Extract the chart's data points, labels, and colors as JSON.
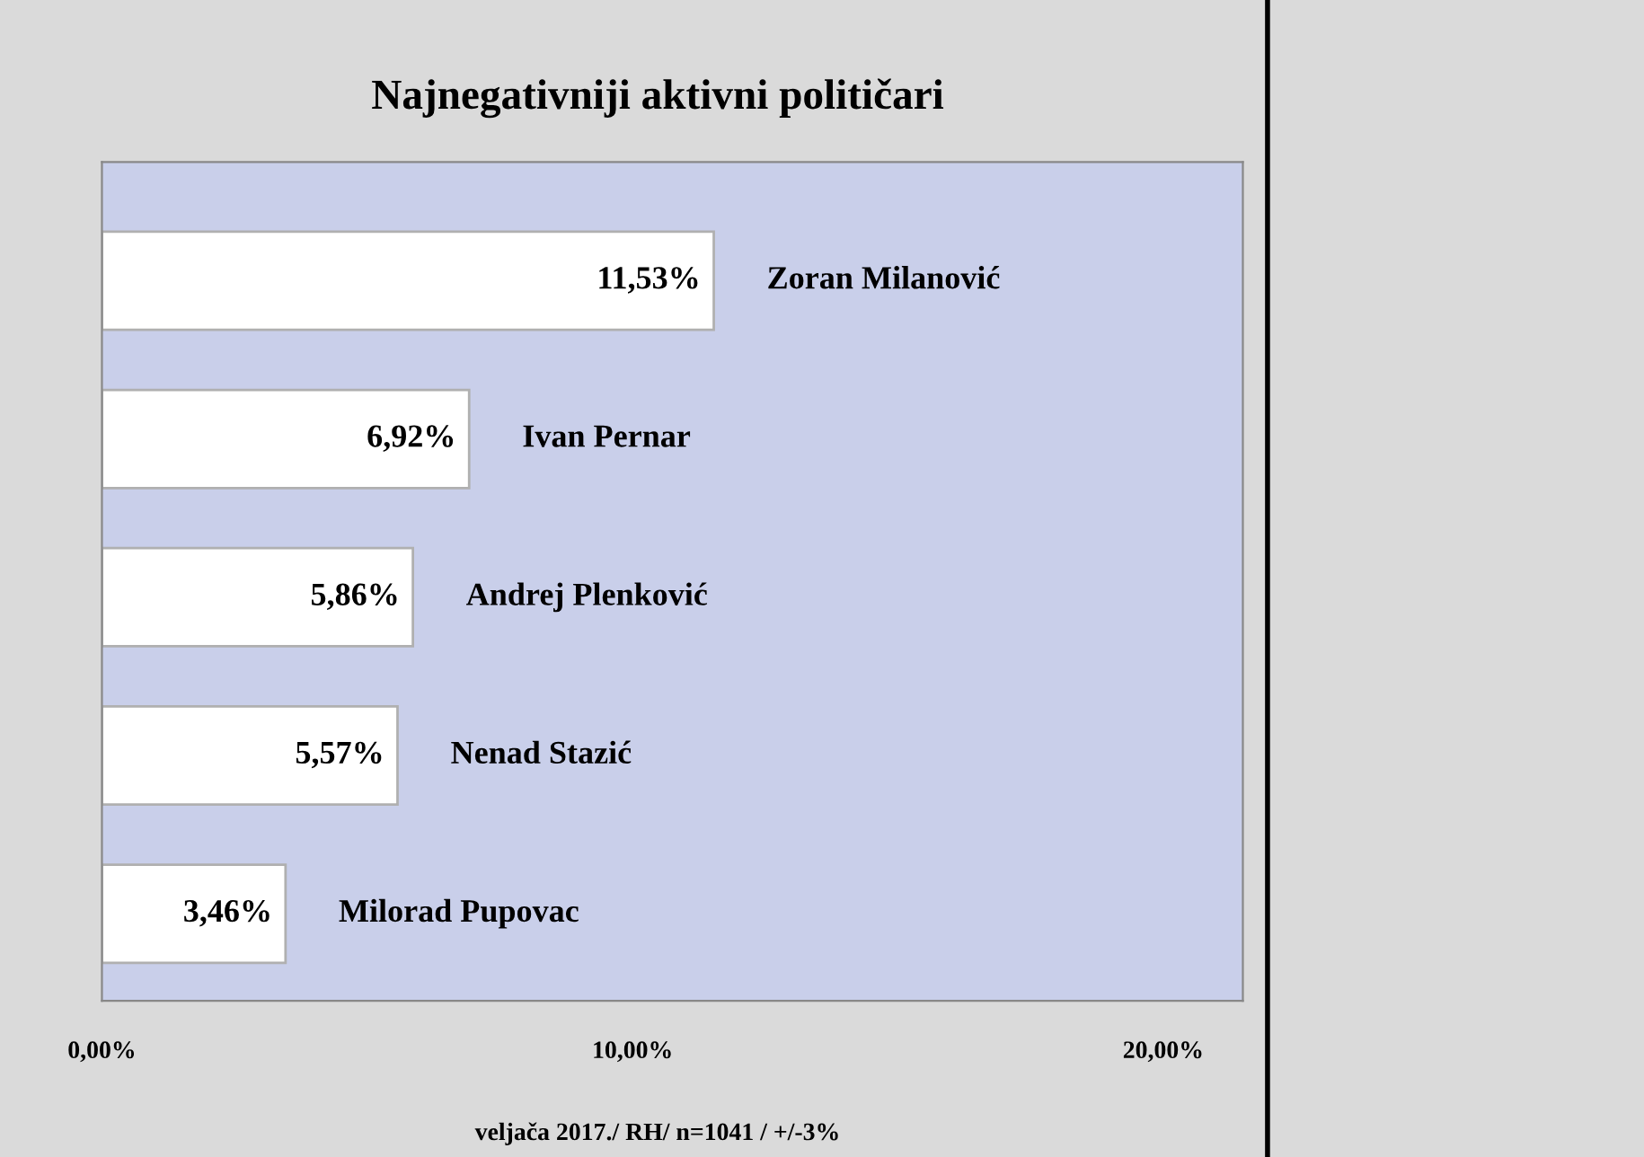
{
  "chart_data": {
    "type": "bar",
    "orientation": "horizontal",
    "title": "Najnegativniji aktivni političari",
    "categories": [
      "Zoran Milanović",
      "Ivan Pernar",
      "Andrej Plenković",
      "Nenad Stazić",
      "Milorad Pupovac"
    ],
    "series": [
      {
        "color": "#ffffff",
        "values": [
          11.53,
          6.92,
          5.86,
          5.57,
          3.46
        ]
      }
    ],
    "value_labels": [
      "11,53%",
      "6,92%",
      "5,86%",
      "5,57%",
      "3,46%"
    ],
    "xlim": [
      0,
      21.5
    ],
    "xticks": [
      {
        "value": 0,
        "label": "0,00%"
      },
      {
        "value": 10,
        "label": "10,00%"
      },
      {
        "value": 20,
        "label": "20,00%"
      }
    ],
    "grid": false,
    "legend": false,
    "annotations": [
      "veljača 2017./ RH/ n=1041 / +/-3%"
    ]
  }
}
